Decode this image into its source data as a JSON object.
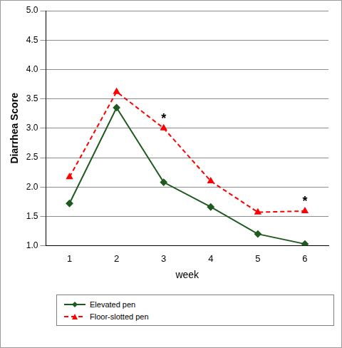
{
  "chart_data": {
    "type": "line",
    "x_label": "week",
    "y_label": "Diarrhea Score",
    "categories": [
      "1",
      "2",
      "3",
      "4",
      "5",
      "6"
    ],
    "series": [
      {
        "name": "Elevated pen",
        "color": "#1e5a1e",
        "marker": "diamond",
        "line_style": "solid",
        "values": [
          1.72,
          3.35,
          2.08,
          1.66,
          1.2,
          1.03
        ]
      },
      {
        "name": "Floor-slotted pen",
        "color": "#ff0000",
        "marker": "triangle",
        "line_style": "dashed",
        "values": [
          2.17,
          3.62,
          3.0,
          2.1,
          1.57,
          1.59
        ]
      }
    ],
    "annotations": [
      {
        "text": "*",
        "category": "3",
        "series": "Floor-slotted pen"
      },
      {
        "text": "*",
        "category": "6",
        "series": "Floor-slotted pen"
      }
    ],
    "ylim": [
      1,
      5
    ],
    "yticks": [
      {
        "value": 1,
        "label": "1.0"
      },
      {
        "value": 1.5,
        "label": "1.5"
      },
      {
        "value": 2,
        "label": "2.0"
      },
      {
        "value": 2.5,
        "label": "2.5"
      },
      {
        "value": 3,
        "label": "3.0"
      },
      {
        "value": 3.5,
        "label": "3.5"
      },
      {
        "value": 4,
        "label": "4.0"
      },
      {
        "value": 4.5,
        "label": "4.5"
      },
      {
        "value": 5,
        "label": "5.0"
      }
    ],
    "grid": true,
    "legend": "bottom"
  }
}
